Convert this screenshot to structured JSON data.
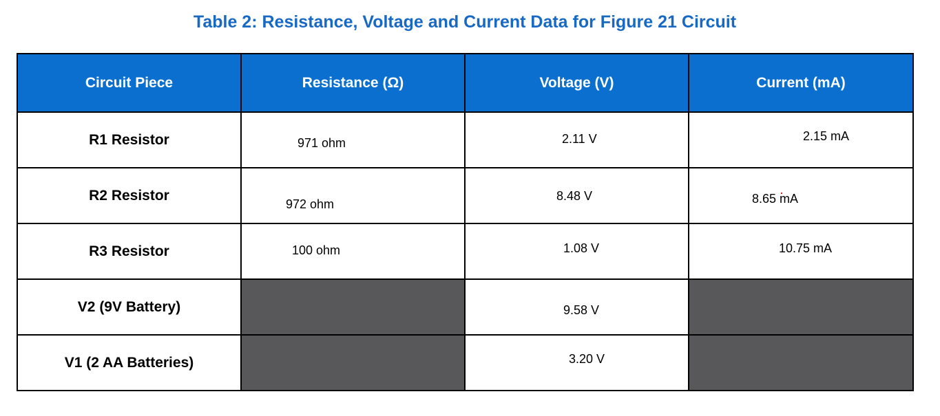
{
  "title": "Table 2: Resistance, Voltage and Current Data for Figure 21 Circuit",
  "headers": [
    "Circuit Piece",
    "Resistance (Ω)",
    "Voltage (V)",
    "Current (mA)"
  ],
  "rows": [
    {
      "piece": "R1 Resistor",
      "resistance": "971 ohm",
      "voltage": "2.11 V",
      "current": "2.15 mA"
    },
    {
      "piece": "R2 Resistor",
      "resistance": "972 ohm",
      "voltage": "8.48 V",
      "current": "8.65 mA"
    },
    {
      "piece": "R3 Resistor",
      "resistance": "100 ohm",
      "voltage": "1.08 V",
      "current": "10.75 mA"
    },
    {
      "piece": "V2 (9V Battery)",
      "resistance": "",
      "voltage": "9.58 V",
      "current": ""
    },
    {
      "piece": "V1 (2 AA Batteries)",
      "resistance": "",
      "voltage": "3.20 V",
      "current": ""
    }
  ],
  "colors": {
    "title": "#1769c4",
    "header_bg": "#0a6fce",
    "header_text": "#ffffff",
    "shaded_cell": "#58585a"
  }
}
